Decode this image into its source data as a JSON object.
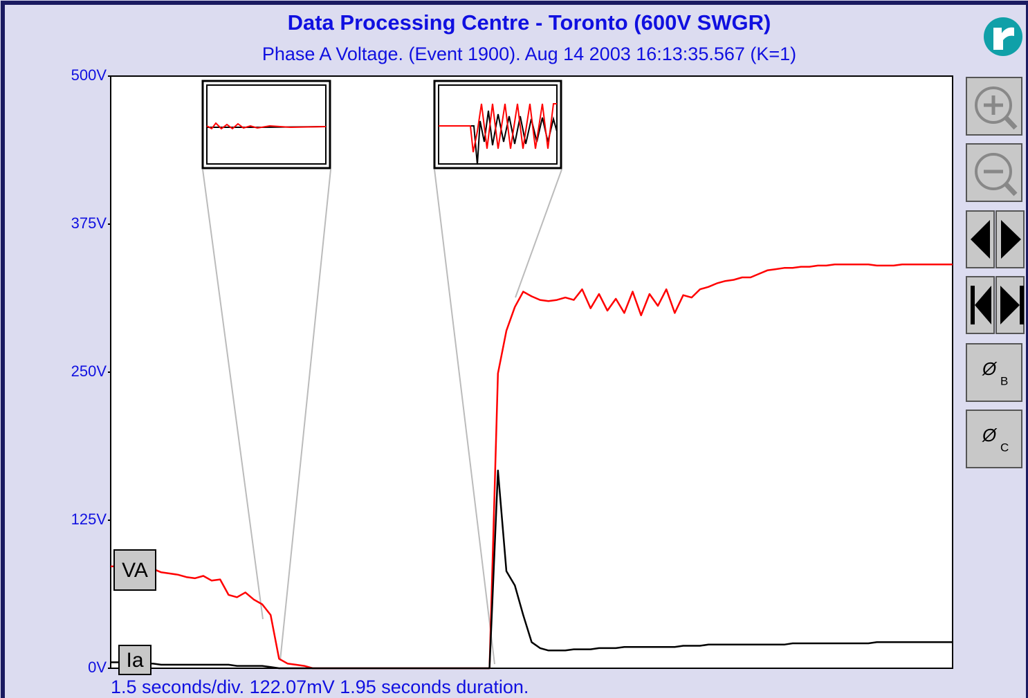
{
  "chart_data": {
    "type": "line",
    "title": "Data Processing Centre - Toronto (600V SWGR)",
    "subtitle": "Phase A Voltage. (Event 1900). Aug 14 2003 16:13:35.567 (K=1)",
    "footer": "1.5 seconds/div.  122.07mV  1.95 seconds duration.",
    "ylim": [
      0,
      500
    ],
    "yticks": [
      {
        "value": 0,
        "label": "0V"
      },
      {
        "value": 125,
        "label": "125V"
      },
      {
        "value": 250,
        "label": "250V"
      },
      {
        "value": 375,
        "label": "375V"
      },
      {
        "value": 500,
        "label": "500V"
      }
    ],
    "series": [
      {
        "name": "VA",
        "color": "#ff0000",
        "values": [
          86,
          86,
          86,
          87,
          86,
          84,
          81,
          80,
          79,
          77,
          76,
          78,
          74,
          75,
          62,
          60,
          64,
          58,
          54,
          45,
          8,
          4,
          3,
          2,
          0,
          0,
          0,
          0,
          0,
          0,
          0,
          0,
          0,
          0,
          0,
          0,
          0,
          0,
          0,
          0,
          0,
          0,
          0,
          0,
          0,
          0,
          249,
          285,
          305,
          318,
          314,
          311,
          310,
          311,
          313,
          311,
          320,
          304,
          316,
          302,
          312,
          300,
          318,
          298,
          316,
          306,
          320,
          300,
          315,
          313,
          320,
          322,
          325,
          327,
          328,
          330,
          330,
          333,
          336,
          337,
          338,
          338,
          339,
          339,
          340,
          340,
          341,
          341,
          341,
          341,
          341,
          340,
          340,
          340,
          341,
          341,
          341,
          341,
          341,
          341,
          341
        ]
      },
      {
        "name": "Ia",
        "color": "#000000",
        "values": [
          5,
          5,
          4,
          4,
          4,
          4,
          3,
          3,
          3,
          3,
          3,
          3,
          3,
          3,
          3,
          2,
          2,
          2,
          2,
          1,
          0,
          0,
          0,
          0,
          0,
          0,
          0,
          0,
          0,
          0,
          0,
          0,
          0,
          0,
          0,
          0,
          0,
          0,
          0,
          0,
          0,
          0,
          0,
          0,
          0,
          0,
          167,
          82,
          70,
          45,
          22,
          17,
          15,
          15,
          15,
          16,
          16,
          16,
          17,
          17,
          17,
          18,
          18,
          18,
          18,
          18,
          18,
          18,
          19,
          19,
          19,
          20,
          20,
          20,
          20,
          20,
          20,
          20,
          20,
          20,
          20,
          21,
          21,
          21,
          21,
          21,
          21,
          21,
          21,
          21,
          21,
          22,
          22,
          22,
          22,
          22,
          22,
          22,
          22,
          22,
          22
        ]
      }
    ],
    "buttons": [
      {
        "symbol": "Ø",
        "sub": "B"
      },
      {
        "symbol": "Ø",
        "sub": "C"
      }
    ]
  }
}
